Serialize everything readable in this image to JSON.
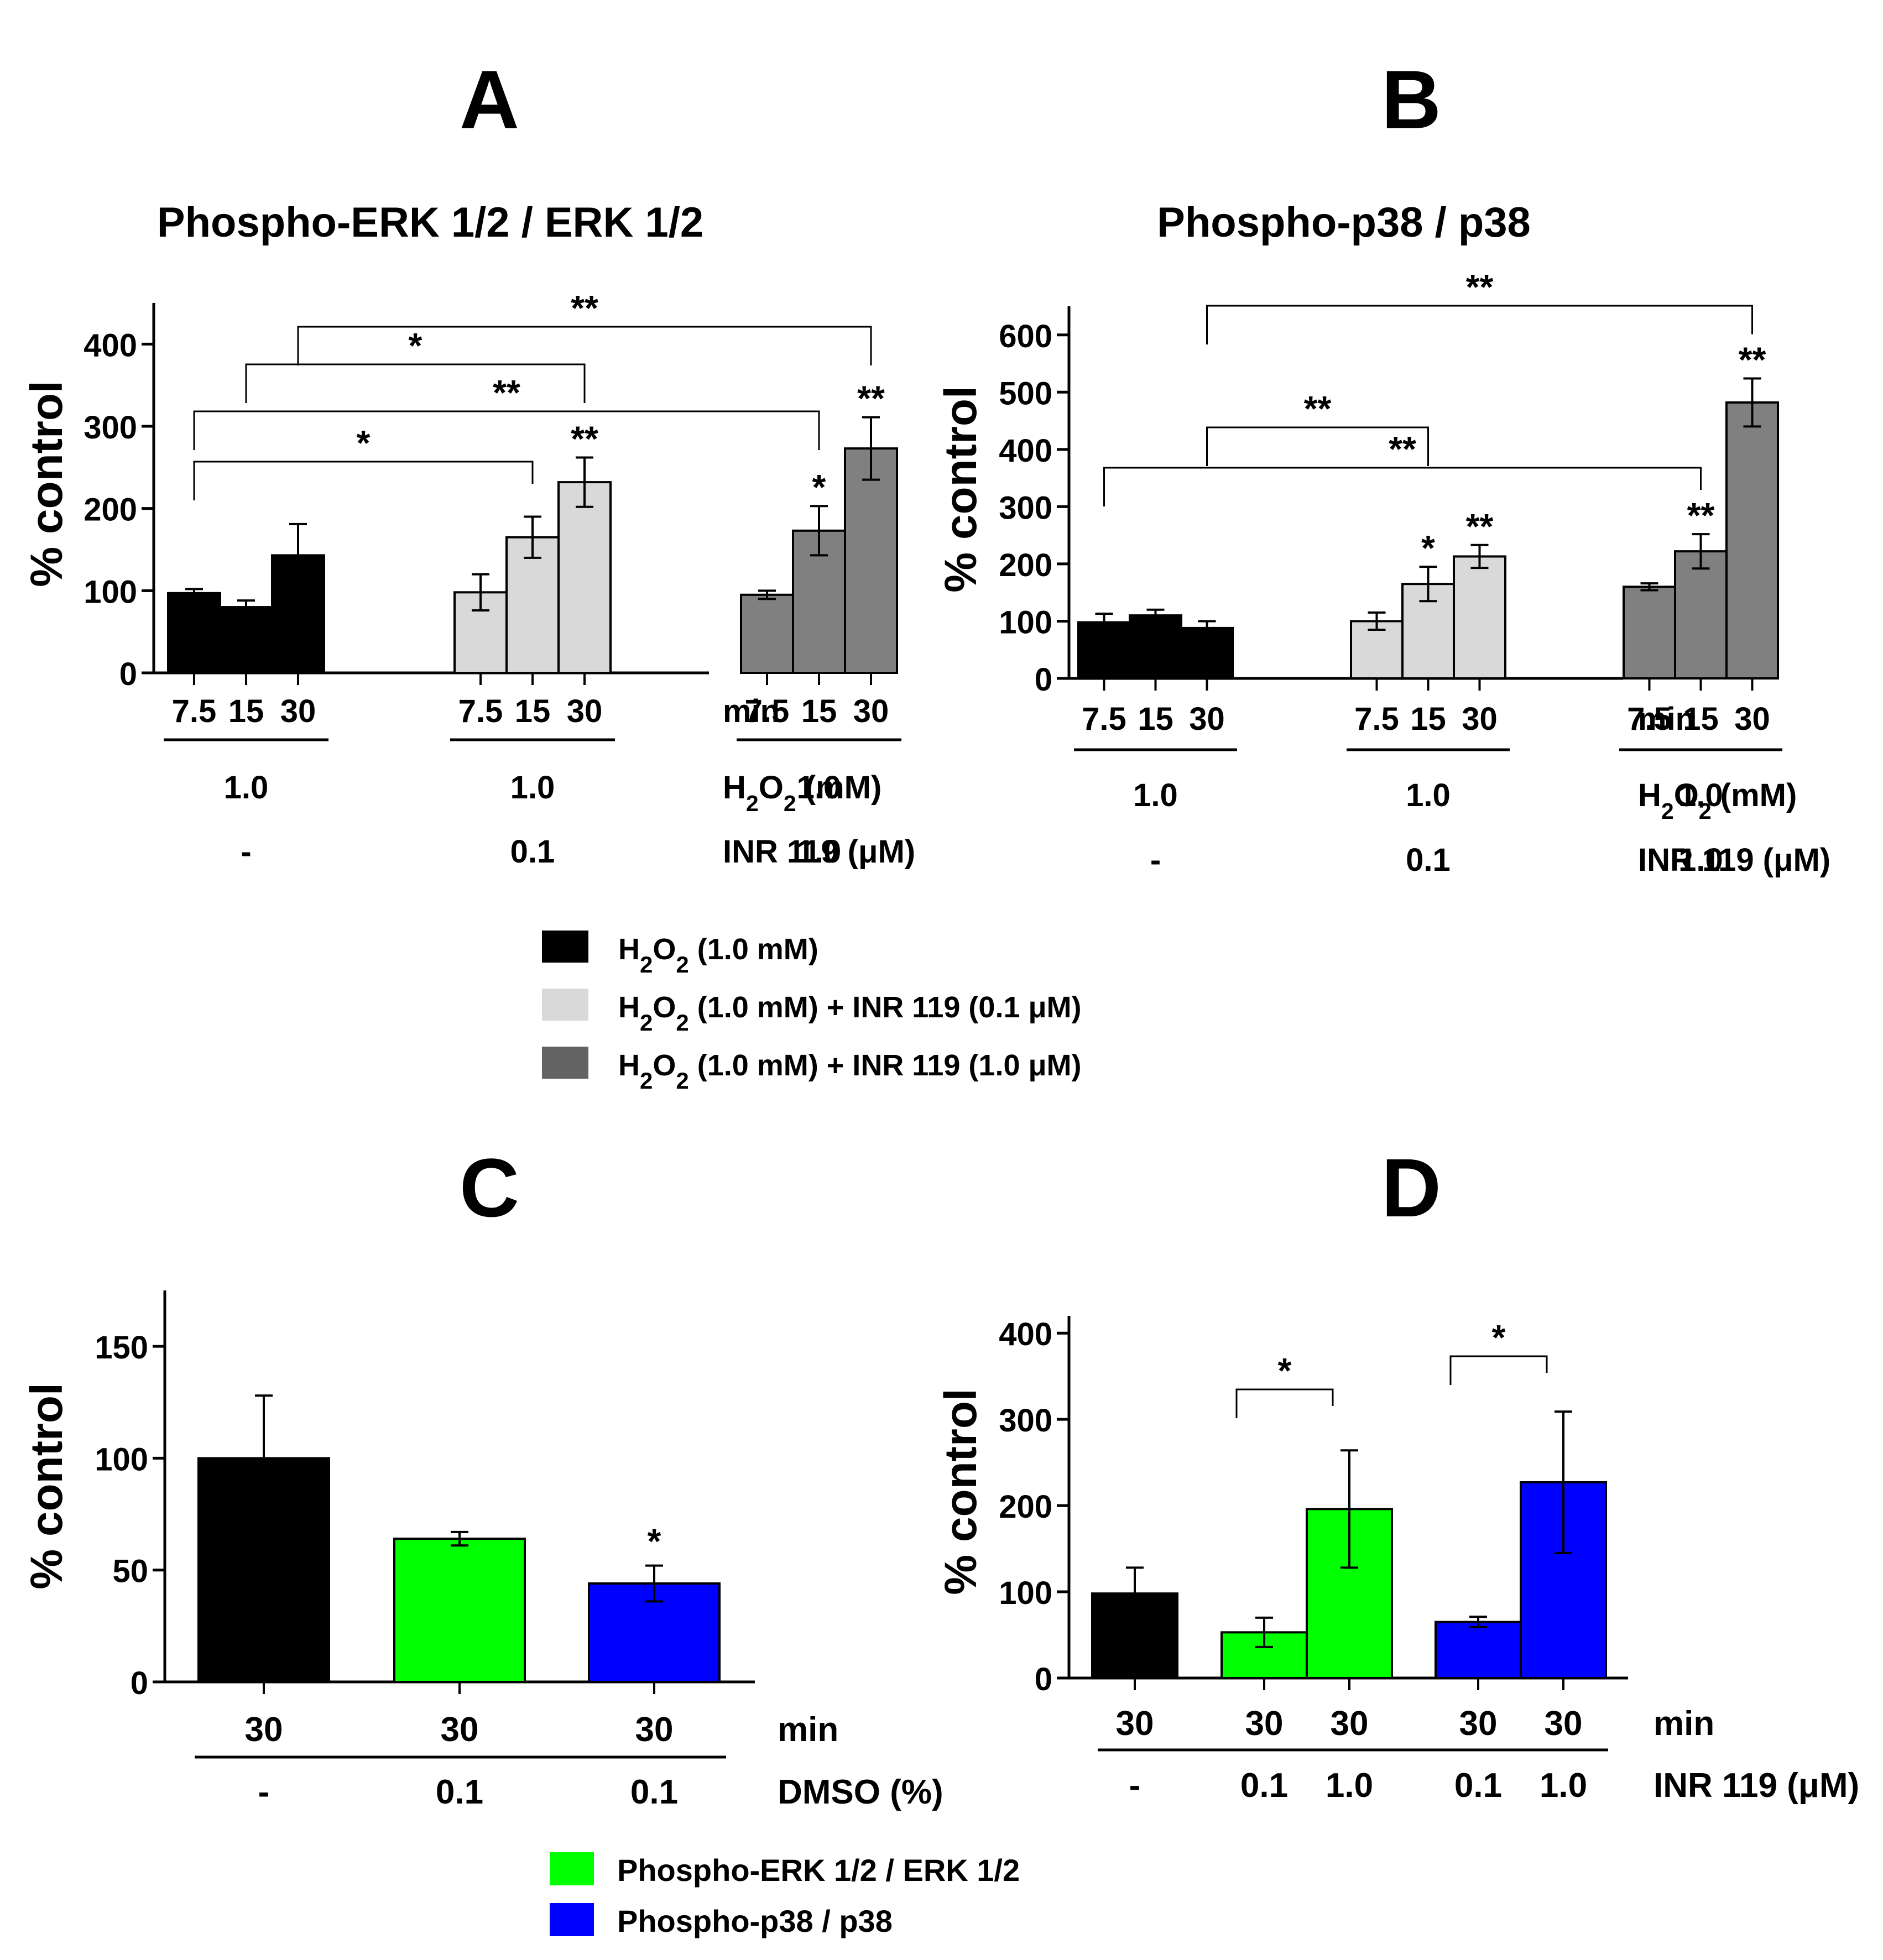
{
  "legend_top": [
    {
      "html": "H<tspan baseline-shift='sub' font-size='42'>2</tspan>O<tspan baseline-shift='sub' font-size='42'>2</tspan> (1.0 mM)",
      "color": "#000000"
    },
    {
      "html": "H<tspan baseline-shift='sub' font-size='42'>2</tspan>O<tspan baseline-shift='sub' font-size='42'>2</tspan> (1.0 mM) + INR 119 (0.1 μM)",
      "color": "#d9d9d9"
    },
    {
      "html": "H<tspan baseline-shift='sub' font-size='42'>2</tspan>O<tspan baseline-shift='sub' font-size='42'>2</tspan> (1.0 mM) + INR 119 (1.0 μM)",
      "color": "#636363"
    }
  ],
  "legend_bottom": [
    {
      "label": "Phospho-ERK 1/2 / ERK 1/2",
      "color": "#00ff00"
    },
    {
      "label": "Phospho-p38 / p38",
      "color": "#0000ff"
    }
  ],
  "chart_data": [
    {
      "panel": "A",
      "type": "bar",
      "title": "Phospho-ERK 1/2 / ERK 1/2",
      "ylabel": "% control",
      "ylim": [
        0,
        450
      ],
      "yticks": [
        0,
        100,
        200,
        300,
        400
      ],
      "xunit": "min",
      "row_labels": [
        "H2O2 (mM)",
        "INR 119 (μM)"
      ],
      "groups": [
        {
          "times": [
            "7.5",
            "15",
            "30"
          ],
          "h2o2": "1.0",
          "inr": "-",
          "color": "#000000",
          "values": [
            97,
            80,
            143
          ],
          "errors": [
            5,
            8,
            38
          ],
          "stars": [
            "",
            "",
            ""
          ]
        },
        {
          "times": [
            "7.5",
            "15",
            "30"
          ],
          "h2o2": "1.0",
          "inr": "0.1",
          "color": "#d9d9d9",
          "values": [
            98,
            165,
            232
          ],
          "errors": [
            22,
            25,
            30
          ],
          "stars": [
            "",
            "",
            "**"
          ]
        },
        {
          "times": [
            "7.5",
            "15",
            "30"
          ],
          "h2o2": "1.0",
          "inr": "1.0",
          "color": "#808080",
          "values": [
            95,
            173,
            273
          ],
          "errors": [
            5,
            30,
            38
          ],
          "stars": [
            "",
            "*",
            "**"
          ]
        }
      ],
      "comparisons": [
        {
          "from": [
            0,
            0
          ],
          "to": [
            1,
            1
          ],
          "label": "*"
        },
        {
          "from": [
            0,
            0
          ],
          "to": [
            2,
            1
          ],
          "label": "**"
        },
        {
          "from": [
            0,
            1
          ],
          "to": [
            1,
            2
          ],
          "label": "*"
        },
        {
          "from": [
            0,
            2
          ],
          "to": [
            2,
            2
          ],
          "label": "**"
        }
      ]
    },
    {
      "panel": "B",
      "type": "bar",
      "title": "Phospho-p38 / p38",
      "ylabel": "% control",
      "ylim": [
        0,
        650
      ],
      "yticks": [
        0,
        100,
        200,
        300,
        400,
        500,
        600
      ],
      "xunit": "min",
      "row_labels": [
        "H2O2 (mM)",
        "INR 119 (μM)"
      ],
      "groups": [
        {
          "times": [
            "7.5",
            "15",
            "30"
          ],
          "h2o2": "1.0",
          "inr": "-",
          "color": "#000000",
          "values": [
            98,
            110,
            88
          ],
          "errors": [
            15,
            10,
            12
          ],
          "stars": [
            "",
            "",
            ""
          ]
        },
        {
          "times": [
            "7.5",
            "15",
            "30"
          ],
          "h2o2": "1.0",
          "inr": "0.1",
          "color": "#d9d9d9",
          "values": [
            100,
            165,
            213
          ],
          "errors": [
            15,
            30,
            20
          ],
          "stars": [
            "",
            "*",
            "**"
          ]
        },
        {
          "times": [
            "7.5",
            "15",
            "30"
          ],
          "h2o2": "1.0",
          "inr": "1.0",
          "color": "#808080",
          "values": [
            160,
            222,
            482
          ],
          "errors": [
            6,
            30,
            42
          ],
          "stars": [
            "",
            "**",
            "**"
          ]
        }
      ],
      "comparisons": [
        {
          "from": [
            0,
            0
          ],
          "to": [
            2,
            1
          ],
          "label": "**"
        },
        {
          "from": [
            0,
            2
          ],
          "to": [
            1,
            1
          ],
          "label": "**"
        },
        {
          "from": [
            0,
            2
          ],
          "to": [
            2,
            2
          ],
          "label": "**"
        }
      ]
    },
    {
      "panel": "C",
      "type": "bar",
      "ylabel": "% control",
      "ylim": [
        0,
        175
      ],
      "yticks": [
        0,
        50,
        100,
        150
      ],
      "xunit": "min",
      "row_label": "DMSO (%)",
      "bars": [
        {
          "time": "30",
          "dmso": "-",
          "value": 100,
          "error": 28,
          "color": "#000000",
          "star": ""
        },
        {
          "time": "30",
          "dmso": "0.1",
          "value": 64,
          "error": 3,
          "color": "#00ff00",
          "star": ""
        },
        {
          "time": "30",
          "dmso": "0.1",
          "value": 44,
          "error": 8,
          "color": "#0000ff",
          "star": "*"
        }
      ]
    },
    {
      "panel": "D",
      "type": "bar",
      "ylabel": "% control",
      "ylim": [
        0,
        420
      ],
      "yticks": [
        0,
        100,
        200,
        300,
        400
      ],
      "xunit": "min",
      "row_label": "INR 119 (μM)",
      "bars": [
        {
          "time": "30",
          "inr": "-",
          "value": 98,
          "error": 30,
          "color": "#000000"
        },
        {
          "time": "30",
          "inr": "0.1",
          "value": 53,
          "error": 17,
          "color": "#00ff00"
        },
        {
          "time": "30",
          "inr": "1.0",
          "value": 196,
          "error": 68,
          "color": "#00ff00"
        },
        {
          "time": "30",
          "inr": "0.1",
          "value": 65,
          "error": 6,
          "color": "#0000ff"
        },
        {
          "time": "30",
          "inr": "1.0",
          "value": 227,
          "error": 82,
          "color": "#0000ff"
        }
      ],
      "comparisons": [
        {
          "from": 1,
          "to": 2,
          "label": "*"
        },
        {
          "from": 3,
          "to": 4,
          "label": "*"
        }
      ]
    }
  ]
}
